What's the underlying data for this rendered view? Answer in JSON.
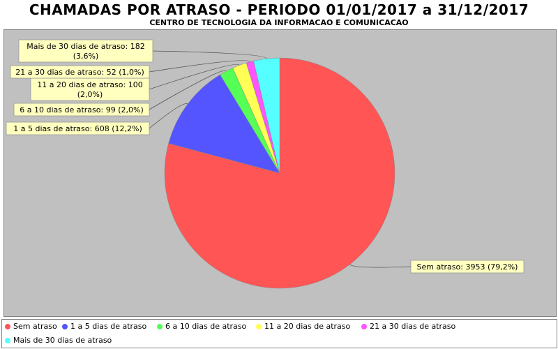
{
  "chart_data": {
    "type": "pie",
    "title": "CHAMADAS POR ATRASO - PERIODO 01/01/2017 a 31/12/2017",
    "subtitle": "CENTRO DE TECNOLOGIA DA INFORMACAO E COMUNICACAO",
    "legend_position": "bottom",
    "slices": [
      {
        "name": "Sem atraso",
        "value": 3953,
        "percent": "79,2%",
        "label": "Sem atraso: 3953 (79,2%)",
        "color": "#ff5555"
      },
      {
        "name": "1 a 5 dias de atraso",
        "value": 608,
        "percent": "12,2%",
        "label": "1 a 5 dias de atraso: 608 (12,2%)",
        "color": "#5555ff"
      },
      {
        "name": "6 a 10 dias de atraso",
        "value": 99,
        "percent": "2,0%",
        "label": "6 a 10 dias de atraso: 99 (2,0%)",
        "color": "#55ff55"
      },
      {
        "name": "11 a 20 dias de atraso",
        "value": 100,
        "percent": "2,0%",
        "label": "11 a 20 dias de atraso: 100 (2,0%)",
        "label_lines": [
          "11 a 20 dias de atraso: 100",
          "(2,0%)"
        ],
        "color": "#ffff55"
      },
      {
        "name": "21 a 30 dias de atraso",
        "value": 52,
        "percent": "1,0%",
        "label": "21 a 30 dias de atraso: 52 (1,0%)",
        "color": "#ff55ff"
      },
      {
        "name": "Mais de 30 dias de atraso",
        "value": 182,
        "percent": "3,6%",
        "label": "Mais de 30 dias de atraso: 182 (3,6%)",
        "label_lines": [
          "Mais de 30 dias de atraso: 182",
          "(3,6%)"
        ],
        "color": "#55ffff"
      }
    ]
  }
}
